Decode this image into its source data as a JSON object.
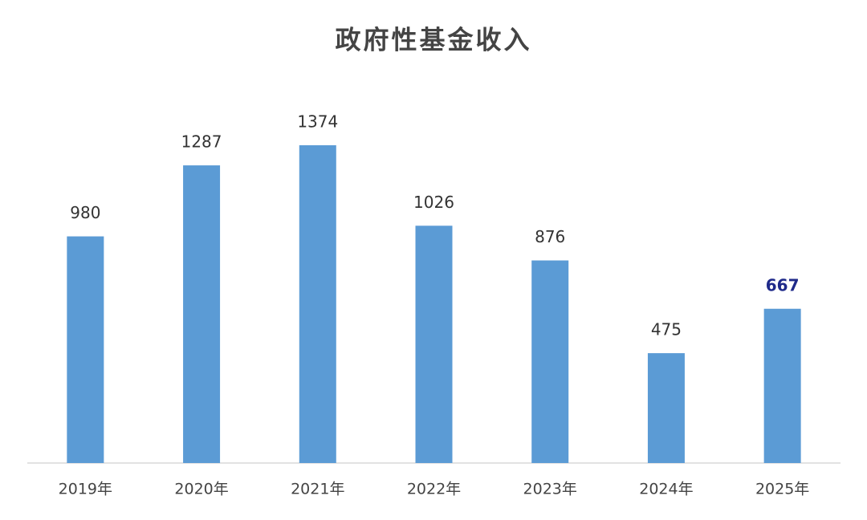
{
  "chart_data": {
    "type": "bar",
    "title": "政府性基金收入",
    "categories": [
      "2019年",
      "2020年",
      "2021年",
      "2022年",
      "2023年",
      "2024年",
      "2025年"
    ],
    "values": [
      980,
      1287,
      1374,
      1026,
      876,
      475,
      667
    ],
    "color": "#5b9bd5",
    "value_label_colors": [
      "#333333",
      "#333333",
      "#333333",
      "#333333",
      "#333333",
      "#333333",
      "#1f2a8a"
    ]
  }
}
